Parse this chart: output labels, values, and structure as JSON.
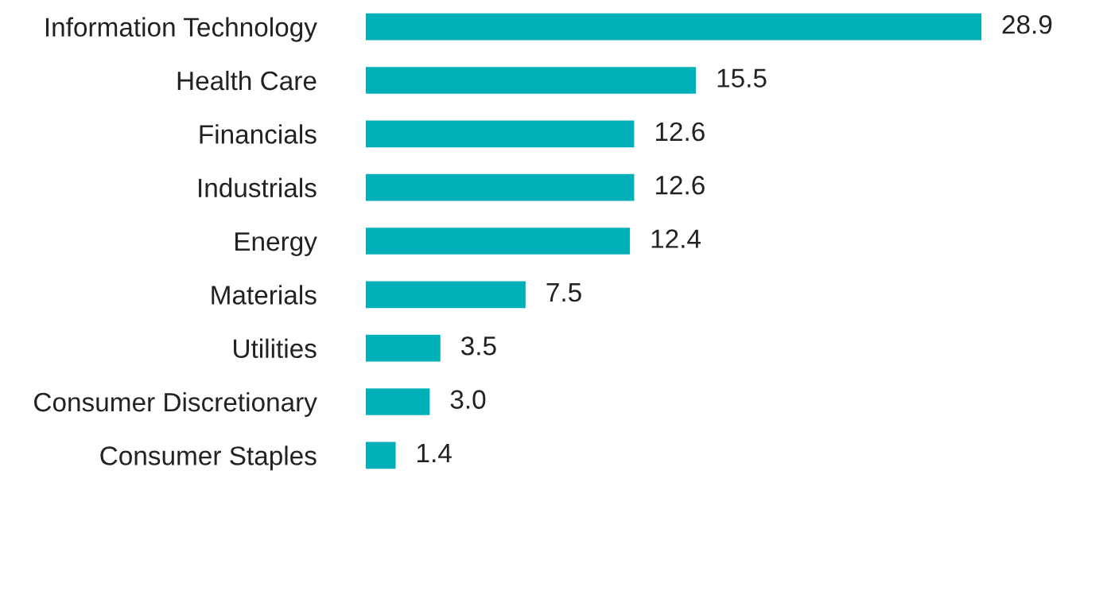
{
  "chart_data": {
    "type": "bar",
    "orientation": "horizontal",
    "categories": [
      "Information Technology",
      "Health Care",
      "Financials",
      "Industrials",
      "Energy",
      "Materials",
      "Utilities",
      "Consumer Discretionary",
      "Consumer Staples"
    ],
    "values": [
      28.9,
      15.5,
      12.6,
      12.6,
      12.4,
      7.5,
      3.5,
      3.0,
      1.4
    ],
    "value_labels": [
      "28.9",
      "15.5",
      "12.6",
      "12.6",
      "12.4",
      "7.5",
      "3.5",
      "3.0",
      "1.4"
    ],
    "color": "#00b0b9",
    "grid": false,
    "legend": false
  }
}
